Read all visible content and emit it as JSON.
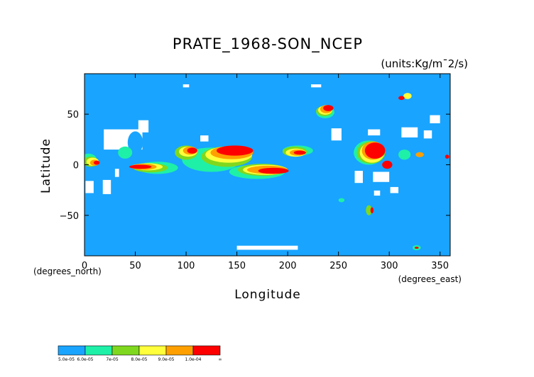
{
  "chart_data": {
    "type": "heatmap",
    "title": "PRATE_1968-SON_NCEP",
    "units": "(units:Kg/m¯2/s)",
    "xlabel": "Longitude",
    "ylabel": "Latitude",
    "x_unit_label": "(degrees_east)",
    "y_unit_label": "(degrees_north)",
    "xlim": [
      0,
      360
    ],
    "ylim": [
      -90,
      90
    ],
    "x_ticks": [
      "0",
      "50",
      "100",
      "150",
      "200",
      "250",
      "300",
      "350"
    ],
    "y_ticks": [
      "50",
      "0",
      "−50"
    ],
    "x_tick_values": [
      0,
      50,
      100,
      150,
      200,
      250,
      300,
      350
    ],
    "y_tick_values": [
      50,
      0,
      -50
    ],
    "colorbar": {
      "labels": [
        "5.0e-05",
        "6.0e-05",
        "7e-05",
        "8.0e-05",
        "9.0e-05",
        "1.0e-04",
        "∞"
      ],
      "colors": [
        "#19a4ff",
        "#1ef0a8",
        "#7fd81e",
        "#ffff3c",
        "#ffa000",
        "#ff0000"
      ]
    },
    "background_color": "#19a4ff",
    "missing_color": "#ffffff",
    "regions": [
      {
        "level": 0,
        "lon": 4,
        "lat": -10,
        "w": 6,
        "h": 10
      },
      {
        "level": 0,
        "lon": 50,
        "lat": 22,
        "w": 15,
        "h": 22
      },
      {
        "level": 0,
        "lon": 110,
        "lat": 4,
        "w": 16,
        "h": 16
      },
      {
        "level": 0,
        "lon": 165,
        "lat": 12,
        "w": 30,
        "h": 16
      },
      {
        "level": 0,
        "lon": 205,
        "lat": 0,
        "w": 15,
        "h": 12
      },
      {
        "level": 0,
        "lon": 240,
        "lat": 10,
        "w": 18,
        "h": 12
      },
      {
        "level": 0,
        "lon": 270,
        "lat": 5,
        "w": 20,
        "h": 15
      },
      {
        "level": 1,
        "lon": 4,
        "lat": 5,
        "w": 16,
        "h": 12
      },
      {
        "level": 1,
        "lon": 40,
        "lat": 12,
        "w": 14,
        "h": 12
      },
      {
        "level": 1,
        "lon": 72,
        "lat": -3,
        "w": 40,
        "h": 12
      },
      {
        "level": 1,
        "lon": 125,
        "lat": 5,
        "w": 58,
        "h": 24
      },
      {
        "level": 1,
        "lon": 170,
        "lat": -7,
        "w": 55,
        "h": 14
      },
      {
        "level": 1,
        "lon": 210,
        "lat": 14,
        "w": 30,
        "h": 10
      },
      {
        "level": 1,
        "lon": 237,
        "lat": 52,
        "w": 18,
        "h": 12
      },
      {
        "level": 1,
        "lon": 280,
        "lat": 12,
        "w": 30,
        "h": 24
      },
      {
        "level": 1,
        "lon": 315,
        "lat": 10,
        "w": 12,
        "h": 10
      },
      {
        "level": 1,
        "lon": 327,
        "lat": -82,
        "w": 8,
        "h": 5
      },
      {
        "level": 1,
        "lon": 253,
        "lat": -35,
        "w": 6,
        "h": 4
      },
      {
        "level": 2,
        "lon": 6,
        "lat": 3,
        "w": 15,
        "h": 10
      },
      {
        "level": 2,
        "lon": 65,
        "lat": -3,
        "w": 34,
        "h": 9
      },
      {
        "level": 2,
        "lon": 100,
        "lat": 12,
        "w": 22,
        "h": 14
      },
      {
        "level": 2,
        "lon": 140,
        "lat": 8,
        "w": 50,
        "h": 20
      },
      {
        "level": 2,
        "lon": 175,
        "lat": -5,
        "w": 48,
        "h": 12
      },
      {
        "level": 2,
        "lon": 207,
        "lat": 13,
        "w": 24,
        "h": 10
      },
      {
        "level": 2,
        "lon": 236,
        "lat": 53,
        "w": 16,
        "h": 10
      },
      {
        "level": 2,
        "lon": 282,
        "lat": 12,
        "w": 28,
        "h": 22
      },
      {
        "level": 2,
        "lon": 280,
        "lat": -45,
        "w": 6,
        "h": 10
      },
      {
        "level": 3,
        "lon": 8,
        "lat": 3,
        "w": 12,
        "h": 8
      },
      {
        "level": 3,
        "lon": 62,
        "lat": -2,
        "w": 30,
        "h": 7
      },
      {
        "level": 3,
        "lon": 102,
        "lat": 13,
        "w": 18,
        "h": 10
      },
      {
        "level": 3,
        "lon": 142,
        "lat": 10,
        "w": 46,
        "h": 16
      },
      {
        "level": 3,
        "lon": 178,
        "lat": -5,
        "w": 44,
        "h": 10
      },
      {
        "level": 3,
        "lon": 208,
        "lat": 12,
        "w": 20,
        "h": 8
      },
      {
        "level": 3,
        "lon": 237,
        "lat": 54,
        "w": 14,
        "h": 9
      },
      {
        "level": 3,
        "lon": 283,
        "lat": 12,
        "w": 24,
        "h": 20
      },
      {
        "level": 3,
        "lon": 318,
        "lat": 68,
        "w": 8,
        "h": 6
      },
      {
        "level": 4,
        "lon": 10,
        "lat": 2,
        "w": 9,
        "h": 6
      },
      {
        "level": 4,
        "lon": 58,
        "lat": -2,
        "w": 26,
        "h": 6
      },
      {
        "level": 4,
        "lon": 104,
        "lat": 14,
        "w": 14,
        "h": 8
      },
      {
        "level": 4,
        "lon": 145,
        "lat": 12,
        "w": 42,
        "h": 13
      },
      {
        "level": 4,
        "lon": 180,
        "lat": -5,
        "w": 40,
        "h": 8
      },
      {
        "level": 4,
        "lon": 210,
        "lat": 12,
        "w": 16,
        "h": 6
      },
      {
        "level": 4,
        "lon": 238,
        "lat": 55,
        "w": 12,
        "h": 8
      },
      {
        "level": 4,
        "lon": 284,
        "lat": 14,
        "w": 22,
        "h": 18
      },
      {
        "level": 4,
        "lon": 330,
        "lat": 10,
        "w": 8,
        "h": 5
      },
      {
        "level": 5,
        "lon": 12,
        "lat": 2,
        "w": 6,
        "h": 4
      },
      {
        "level": 5,
        "lon": 55,
        "lat": -2,
        "w": 22,
        "h": 4
      },
      {
        "level": 5,
        "lon": 106,
        "lat": 14,
        "w": 10,
        "h": 6
      },
      {
        "level": 5,
        "lon": 148,
        "lat": 14,
        "w": 36,
        "h": 10
      },
      {
        "level": 5,
        "lon": 186,
        "lat": -6,
        "w": 30,
        "h": 6
      },
      {
        "level": 5,
        "lon": 212,
        "lat": 12,
        "w": 12,
        "h": 4
      },
      {
        "level": 5,
        "lon": 240,
        "lat": 56,
        "w": 10,
        "h": 6
      },
      {
        "level": 5,
        "lon": 286,
        "lat": 14,
        "w": 20,
        "h": 16
      },
      {
        "level": 5,
        "lon": 298,
        "lat": 0,
        "w": 10,
        "h": 8
      },
      {
        "level": 5,
        "lon": 312,
        "lat": 66,
        "w": 6,
        "h": 4
      },
      {
        "level": 5,
        "lon": 327,
        "lat": -82,
        "w": 4,
        "h": 2
      },
      {
        "level": 5,
        "lon": 283,
        "lat": -45,
        "w": 3,
        "h": 6
      },
      {
        "level": 5,
        "lon": 357,
        "lat": 8,
        "w": 4,
        "h": 4
      }
    ],
    "missing_regions": [
      {
        "lon": 38,
        "lat": 25,
        "w": 38,
        "h": 20
      },
      {
        "lon": 58,
        "lat": 38,
        "w": 10,
        "h": 12
      },
      {
        "lon": 5,
        "lat": -22,
        "w": 8,
        "h": 12
      },
      {
        "lon": 22,
        "lat": -22,
        "w": 8,
        "h": 14
      },
      {
        "lon": 32,
        "lat": -8,
        "w": 4,
        "h": 8
      },
      {
        "lon": 118,
        "lat": 26,
        "w": 8,
        "h": 6
      },
      {
        "lon": 248,
        "lat": 30,
        "w": 10,
        "h": 12
      },
      {
        "lon": 270,
        "lat": -12,
        "w": 8,
        "h": 12
      },
      {
        "lon": 292,
        "lat": -12,
        "w": 16,
        "h": 10
      },
      {
        "lon": 305,
        "lat": -25,
        "w": 8,
        "h": 6
      },
      {
        "lon": 288,
        "lat": -28,
        "w": 6,
        "h": 5
      },
      {
        "lon": 285,
        "lat": 32,
        "w": 12,
        "h": 6
      },
      {
        "lon": 100,
        "lat": 78,
        "w": 6,
        "h": 3
      },
      {
        "lon": 228,
        "lat": 78,
        "w": 10,
        "h": 3
      },
      {
        "lon": 320,
        "lat": 32,
        "w": 16,
        "h": 10
      },
      {
        "lon": 338,
        "lat": 30,
        "w": 8,
        "h": 8
      },
      {
        "lon": 345,
        "lat": 45,
        "w": 10,
        "h": 8
      },
      {
        "lon": 180,
        "lat": -82,
        "w": 60,
        "h": 4
      }
    ]
  }
}
